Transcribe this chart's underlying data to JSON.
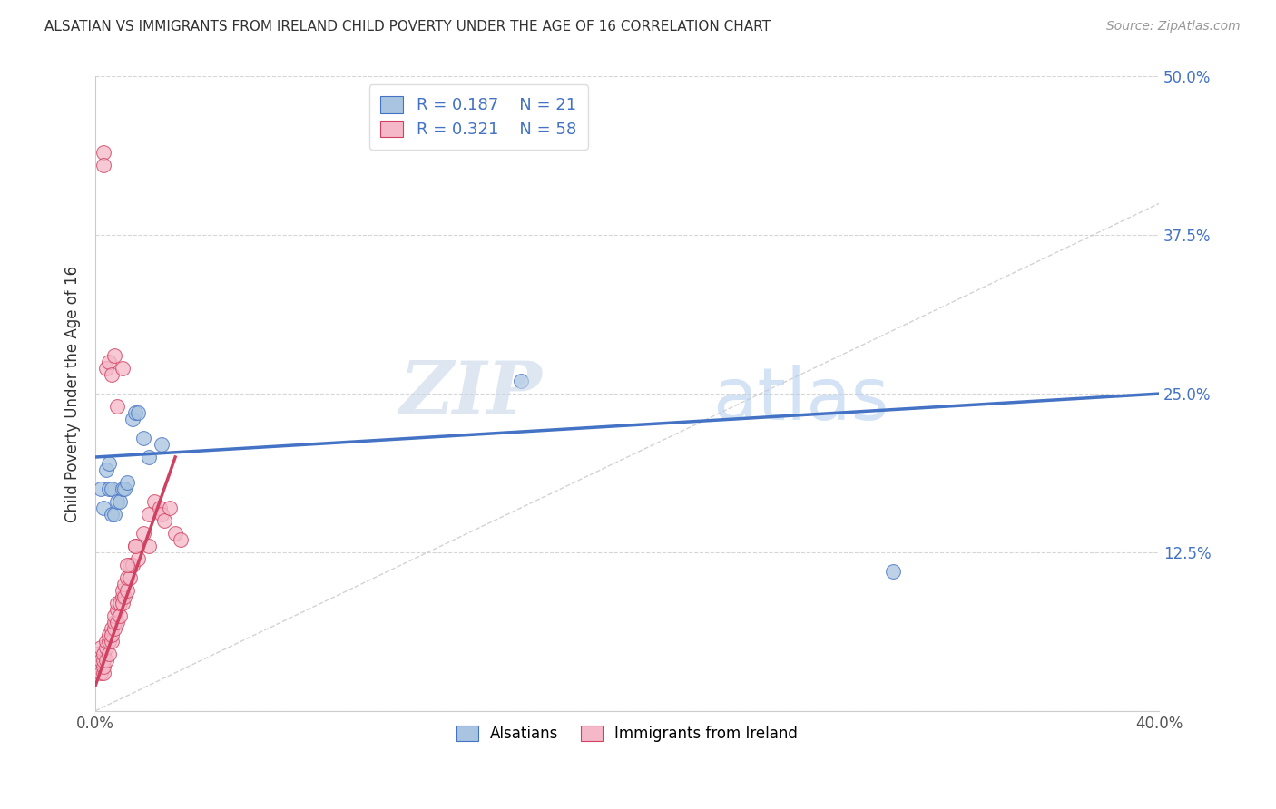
{
  "title": "ALSATIAN VS IMMIGRANTS FROM IRELAND CHILD POVERTY UNDER THE AGE OF 16 CORRELATION CHART",
  "source": "Source: ZipAtlas.com",
  "ylabel": "Child Poverty Under the Age of 16",
  "xlim": [
    0.0,
    0.4
  ],
  "ylim": [
    0.0,
    0.5
  ],
  "xticks": [
    0.0,
    0.05,
    0.1,
    0.15,
    0.2,
    0.25,
    0.3,
    0.35,
    0.4
  ],
  "xticklabels": [
    "0.0%",
    "",
    "",
    "",
    "",
    "",
    "",
    "",
    "40.0%"
  ],
  "ytick_positions": [
    0.0,
    0.125,
    0.25,
    0.375,
    0.5
  ],
  "yticklabels": [
    "",
    "12.5%",
    "25.0%",
    "37.5%",
    "50.0%"
  ],
  "legend_r1": "R = 0.187",
  "legend_n1": "N = 21",
  "legend_r2": "R = 0.321",
  "legend_n2": "N = 58",
  "color_blue": "#a8c4e0",
  "color_pink": "#f4b8c8",
  "line_blue": "#4472c4",
  "line_pink": "#d04060",
  "line_diagonal": "#c8c8c8",
  "watermark_zip": "ZIP",
  "watermark_atlas": "atlas",
  "alsatian_x": [
    0.002,
    0.003,
    0.004,
    0.005,
    0.005,
    0.006,
    0.006,
    0.007,
    0.008,
    0.009,
    0.01,
    0.011,
    0.012,
    0.014,
    0.015,
    0.016,
    0.018,
    0.02,
    0.025,
    0.16,
    0.3
  ],
  "alsatian_y": [
    0.175,
    0.16,
    0.19,
    0.195,
    0.175,
    0.175,
    0.155,
    0.155,
    0.165,
    0.165,
    0.175,
    0.175,
    0.18,
    0.23,
    0.235,
    0.235,
    0.215,
    0.2,
    0.21,
    0.26,
    0.11
  ],
  "ireland_x": [
    0.001,
    0.001,
    0.002,
    0.002,
    0.002,
    0.003,
    0.003,
    0.003,
    0.003,
    0.004,
    0.004,
    0.004,
    0.005,
    0.005,
    0.005,
    0.006,
    0.006,
    0.006,
    0.007,
    0.007,
    0.007,
    0.008,
    0.008,
    0.008,
    0.009,
    0.009,
    0.01,
    0.01,
    0.01,
    0.011,
    0.011,
    0.012,
    0.012,
    0.013,
    0.013,
    0.014,
    0.015,
    0.016,
    0.018,
    0.02,
    0.02,
    0.022,
    0.024,
    0.025,
    0.026,
    0.028,
    0.03,
    0.032,
    0.003,
    0.003,
    0.004,
    0.005,
    0.006,
    0.007,
    0.008,
    0.01,
    0.012,
    0.015
  ],
  "ireland_y": [
    0.035,
    0.045,
    0.03,
    0.04,
    0.05,
    0.03,
    0.035,
    0.04,
    0.045,
    0.04,
    0.05,
    0.055,
    0.045,
    0.055,
    0.06,
    0.055,
    0.065,
    0.06,
    0.065,
    0.07,
    0.075,
    0.07,
    0.08,
    0.085,
    0.075,
    0.085,
    0.09,
    0.095,
    0.085,
    0.09,
    0.1,
    0.095,
    0.105,
    0.105,
    0.115,
    0.115,
    0.13,
    0.12,
    0.14,
    0.155,
    0.13,
    0.165,
    0.16,
    0.155,
    0.15,
    0.16,
    0.14,
    0.135,
    0.44,
    0.43,
    0.27,
    0.275,
    0.265,
    0.28,
    0.24,
    0.27,
    0.115,
    0.13
  ],
  "blue_line_x0": 0.0,
  "blue_line_y0": 0.2,
  "blue_line_x1": 0.4,
  "blue_line_y1": 0.25,
  "pink_line_x0": 0.0,
  "pink_line_y0": 0.02,
  "pink_line_x1": 0.03,
  "pink_line_y1": 0.2
}
